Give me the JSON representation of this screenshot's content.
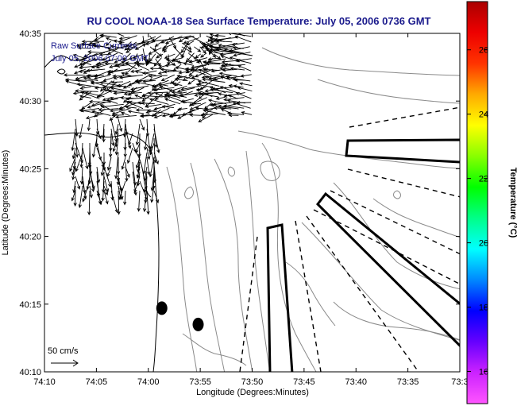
{
  "chart_data": {
    "type": "map",
    "title": "RU COOL  NOAA-18  Sea Surface Temperature:  July 05, 2006 0736 GMT",
    "xlabel": "Longitude (Degrees:Minutes)",
    "ylabel": "Latitude (Degrees:Minutes)",
    "x_ticks": [
      "74:10",
      "74:05",
      "74:00",
      "73:55",
      "73:50",
      "73:45",
      "73:40",
      "73:35",
      "73:3"
    ],
    "y_ticks": [
      "40:35",
      "40:30",
      "40:25",
      "40:20",
      "40:15",
      "40:10"
    ],
    "xlim_min": [
      -10,
      30
    ],
    "ylim_min": [
      10,
      35
    ],
    "annotation_lines": [
      "Raw Surface Currents",
      "July 05, 2006 07:00 GMT"
    ],
    "scale_label": "50 cm/s",
    "colorbar": {
      "label": "Temperature (°C)",
      "ticks": [
        "26",
        "24",
        "22",
        "20",
        "18",
        "16"
      ],
      "range": [
        15,
        27.5
      ],
      "colors": [
        "#ff55ff",
        "#cc22ff",
        "#6600ff",
        "#0000ff",
        "#0088ff",
        "#00ffff",
        "#00ff88",
        "#00ff00",
        "#88ff00",
        "#ffff00",
        "#ffaa00",
        "#ff3300",
        "#ee0000",
        "#aa0000"
      ]
    },
    "stations": [
      {
        "lon_min": 1.3,
        "lat_min": 14.7
      },
      {
        "lon_min": 4.8,
        "lat_min": 13.5
      }
    ],
    "grid": false,
    "legend_position": "right"
  }
}
